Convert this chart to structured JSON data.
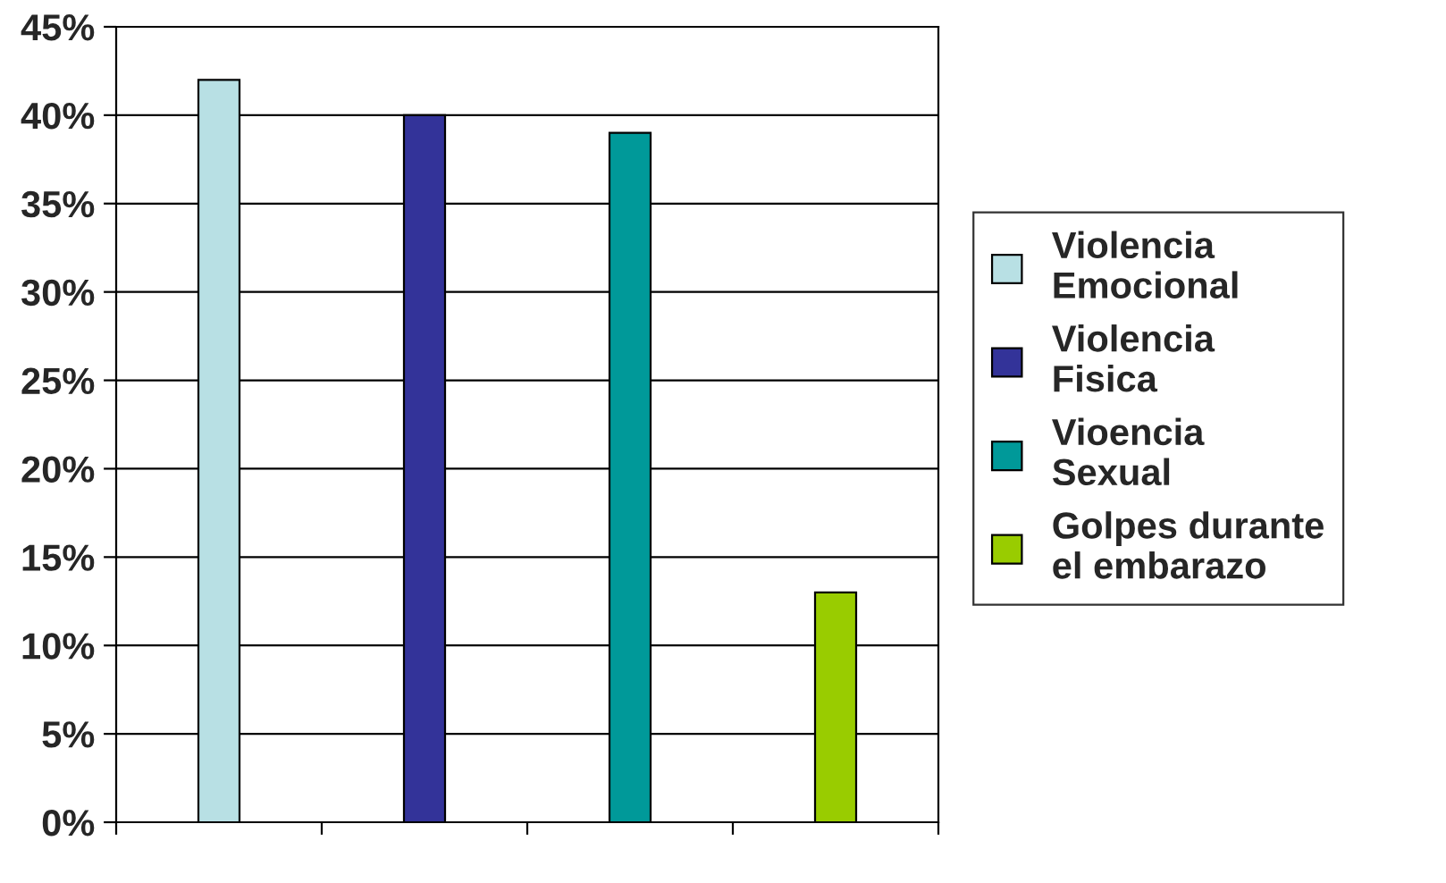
{
  "chart_data": {
    "type": "bar",
    "categories": [
      null,
      null,
      null,
      null
    ],
    "series": [
      {
        "name": "Violencia\nEmocional",
        "color": "#b8e0e4",
        "values": [
          42,
          null,
          null,
          null
        ]
      },
      {
        "name": "Violencia\nFisica",
        "color": "#333399",
        "values": [
          null,
          40,
          null,
          null
        ]
      },
      {
        "name": "Vioencia\nSexual",
        "color": "#009999",
        "values": [
          null,
          null,
          39,
          null
        ]
      },
      {
        "name": "Golpes durante\nel embarazo",
        "color": "#99cc00",
        "values": [
          null,
          null,
          null,
          13
        ]
      }
    ],
    "ylim": [
      0,
      45
    ],
    "yticks": [
      {
        "value": 0,
        "label": "0%"
      },
      {
        "value": 5,
        "label": "5%"
      },
      {
        "value": 10,
        "label": "10%"
      },
      {
        "value": 15,
        "label": "15%"
      },
      {
        "value": 20,
        "label": "20%"
      },
      {
        "value": 25,
        "label": "25%"
      },
      {
        "value": 30,
        "label": "30%"
      },
      {
        "value": 35,
        "label": "35%"
      },
      {
        "value": 40,
        "label": "40%"
      },
      {
        "value": 45,
        "label": "45%"
      }
    ],
    "grid": "y",
    "legend": "right"
  }
}
